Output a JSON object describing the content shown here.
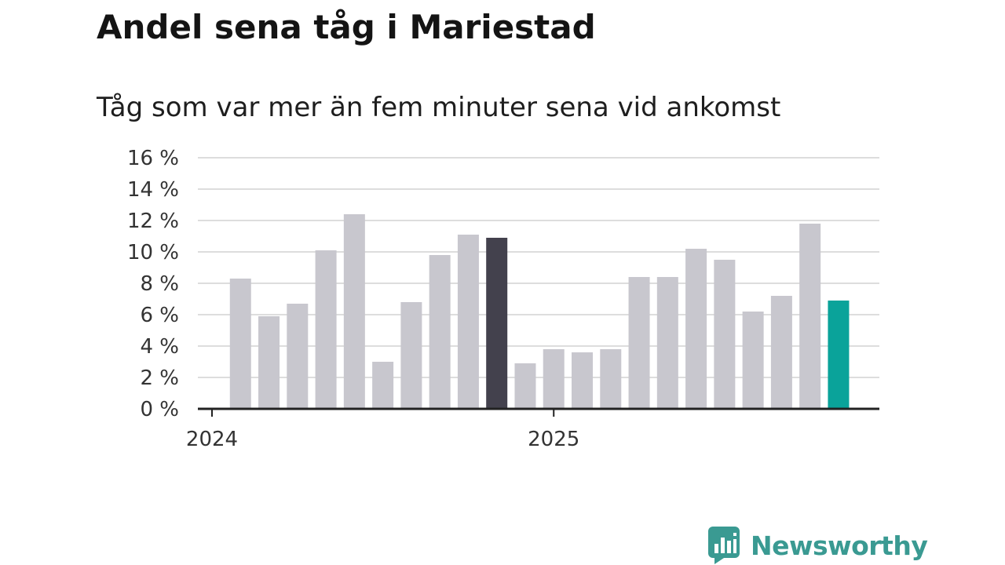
{
  "title": "Andel sena tåg i Mariestad",
  "subtitle": "Tåg som var mer än fem minuter sena vid ankomst",
  "brand": {
    "name": "Newsworthy",
    "logo_icon": "newsworthy-bar-chart-logo"
  },
  "colors": {
    "bar_default": "#c8c7ce",
    "bar_highlight_dark": "#43414d",
    "bar_current": "#0aa39a",
    "grid": "#dddddd",
    "axis": "#222222",
    "brand": "#3a9a92"
  },
  "chart_data": {
    "type": "bar",
    "title": "Andel sena tåg i Mariestad",
    "subtitle": "Tåg som var mer än fem minuter sena vid ankomst",
    "xlabel": "",
    "ylabel": "",
    "ylim": [
      0,
      16
    ],
    "yticks": [
      0,
      2,
      4,
      6,
      8,
      10,
      12,
      14,
      16
    ],
    "ytick_labels": [
      "0 %",
      "2 %",
      "4 %",
      "6 %",
      "8 %",
      "10 %",
      "12 %",
      "14 %",
      "16 %"
    ],
    "grid": true,
    "x_year_ticks": [
      {
        "label": "2024",
        "month_index": 0
      },
      {
        "label": "2025",
        "month_index": 12
      }
    ],
    "months": [
      "2024-01",
      "2024-02",
      "2024-03",
      "2024-04",
      "2024-05",
      "2024-06",
      "2024-07",
      "2024-08",
      "2024-09",
      "2024-10",
      "2024-11",
      "2024-12",
      "2025-01",
      "2025-02",
      "2025-03",
      "2025-04",
      "2025-05",
      "2025-06",
      "2025-07",
      "2025-08",
      "2025-09",
      "2025-10",
      "2025-11",
      "2025-12"
    ],
    "values": [
      null,
      8.3,
      5.9,
      6.7,
      10.1,
      12.4,
      3.0,
      6.8,
      9.8,
      11.1,
      10.9,
      2.9,
      3.8,
      3.6,
      3.8,
      8.4,
      8.4,
      10.2,
      9.5,
      6.2,
      7.2,
      11.8,
      6.9,
      null
    ],
    "highlight": [
      {
        "month": "2024-11",
        "color": "#43414d"
      },
      {
        "month": "2025-11",
        "color": "#0aa39a"
      }
    ]
  }
}
